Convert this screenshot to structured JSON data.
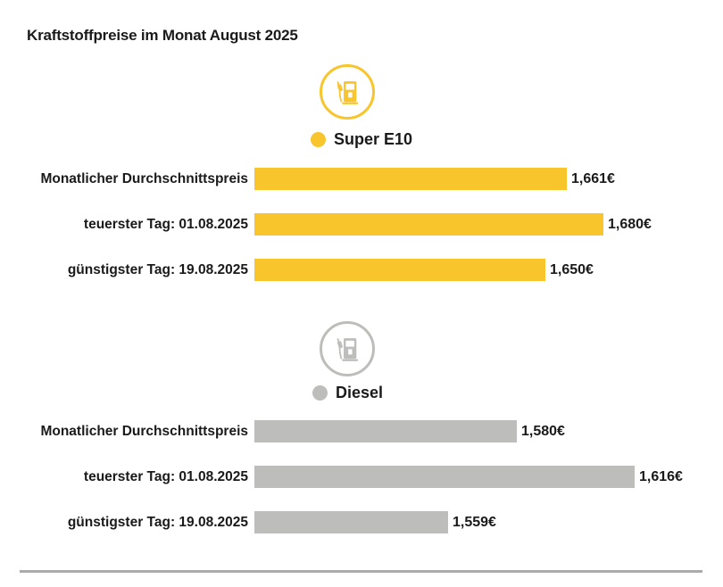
{
  "title": "Kraftstoffpreise im Monat August 2025",
  "colors": {
    "text": "#1A1A1A",
    "super_e10": "#F8C52D",
    "diesel": "#BDBDBB",
    "divider": "#ABABAB",
    "background": "#FFFFFF"
  },
  "chart_data": {
    "type": "bar",
    "orientation": "horizontal",
    "unit": "€",
    "number_format": "de-DE",
    "axis_min": 1.5,
    "grid": false,
    "sections": [
      {
        "name": "Super E10",
        "color": "#F8C52D",
        "icon": "fuel-pump-icon",
        "categories": [
          "Monatlicher Durchschnittspreis",
          "teuerster Tag: 01.08.2025",
          "günstigster Tag: 19.08.2025"
        ],
        "values": [
          1.661,
          1.68,
          1.65
        ],
        "value_labels": [
          "1,661€",
          "1,680€",
          "1,650€"
        ]
      },
      {
        "name": "Diesel",
        "color": "#BDBDBB",
        "icon": "fuel-pump-icon",
        "categories": [
          "Monatlicher Durchschnittspreis",
          "teuerster Tag: 01.08.2025",
          "günstigster Tag: 19.08.2025"
        ],
        "values": [
          1.58,
          1.616,
          1.559
        ],
        "value_labels": [
          "1,580€",
          "1,616€",
          "1,559€"
        ]
      }
    ]
  }
}
